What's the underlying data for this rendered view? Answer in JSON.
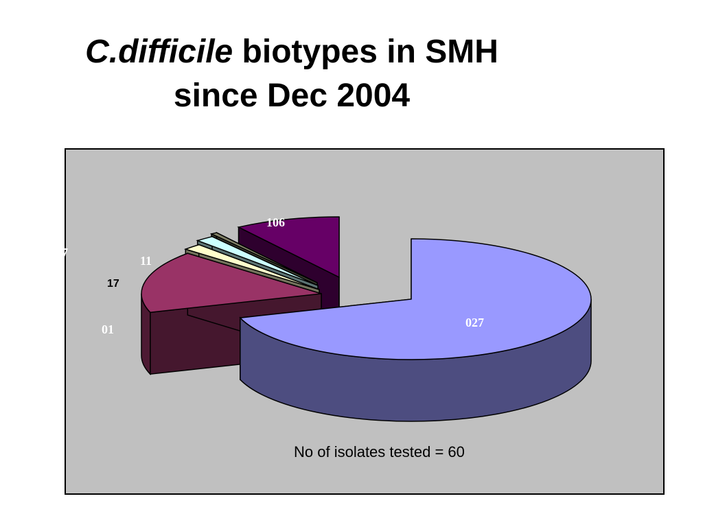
{
  "title": {
    "italic_part": "C.difficile",
    "rest_line1": " biotypes in SMH",
    "line2": "since Dec 2004"
  },
  "note": "No of isolates tested = 60",
  "chart_data": {
    "type": "pie",
    "style": "3d-exploded",
    "slices": [
      {
        "label": "027",
        "value": 42,
        "color": "#9999ff"
      },
      {
        "label": "01",
        "value": 10,
        "color": "#993366"
      },
      {
        "label": "17",
        "value": 1,
        "color": "#ffffcc"
      },
      {
        "label": "11",
        "value": 1,
        "color": "#ccffff"
      },
      {
        "label": "7",
        "value": 0,
        "color": "#808066"
      },
      {
        "label": "106",
        "value": 6,
        "color": "#660066"
      }
    ],
    "total_isolates": 60
  }
}
